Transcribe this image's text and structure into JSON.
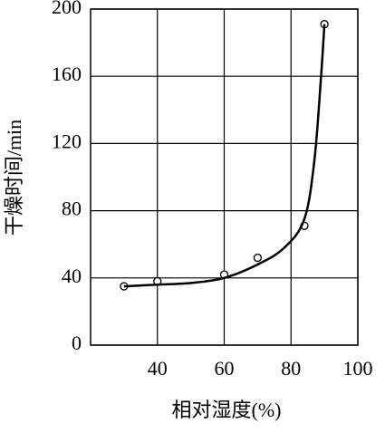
{
  "chart_data": {
    "type": "scatter",
    "xlabel": "相对湿度(%)",
    "ylabel": "干燥时间/min",
    "xlim": [
      20,
      100
    ],
    "ylim": [
      0,
      200
    ],
    "xticks": [
      40,
      60,
      80,
      100
    ],
    "yticks": [
      0,
      40,
      80,
      120,
      160,
      200
    ],
    "grid": true,
    "series": [
      {
        "kind": "points",
        "color": "#000000",
        "x": [
          30,
          40,
          60,
          70,
          84,
          90
        ],
        "values": [
          35,
          38,
          42,
          52,
          71,
          191
        ]
      },
      {
        "kind": "curve",
        "color": "#000000",
        "x": [
          30,
          40,
          50,
          60,
          70,
          78,
          84,
          87,
          89,
          90
        ],
        "values": [
          35,
          36,
          37,
          40,
          48,
          58,
          75,
          110,
          160,
          191
        ]
      }
    ]
  }
}
